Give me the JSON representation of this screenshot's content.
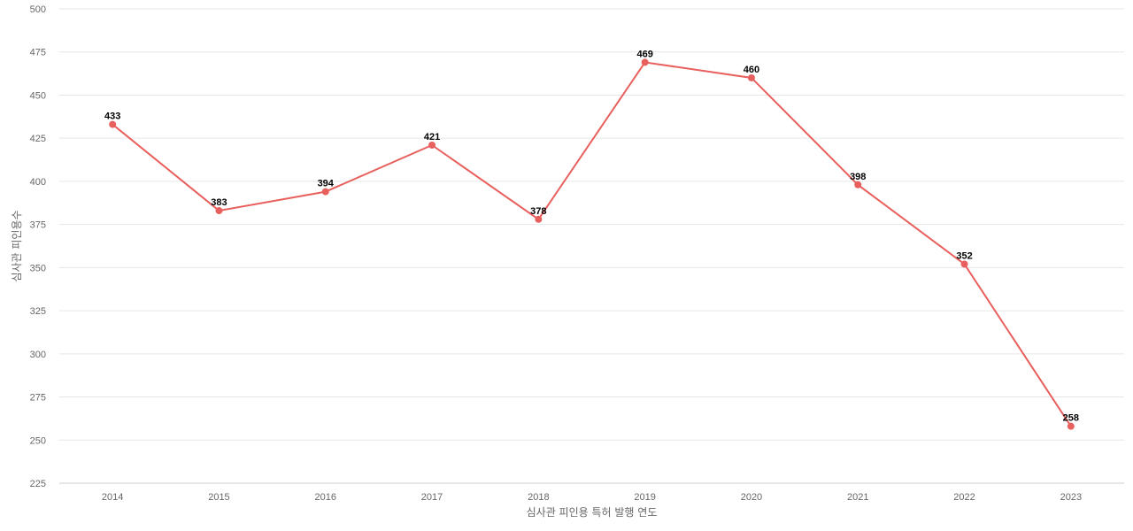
{
  "chart_data": {
    "type": "line",
    "title": "",
    "xlabel": "심사관 피인용 특허 발행 연도",
    "ylabel": "심사관 피인용수",
    "categories": [
      "2014",
      "2015",
      "2016",
      "2017",
      "2018",
      "2019",
      "2020",
      "2021",
      "2022",
      "2023"
    ],
    "series": [
      {
        "values": [
          433,
          383,
          394,
          421,
          378,
          469,
          460,
          398,
          352,
          258
        ]
      }
    ],
    "ylim": [
      225,
      500
    ],
    "yticks": [
      225,
      250,
      275,
      300,
      325,
      350,
      375,
      400,
      425,
      450,
      475,
      500
    ],
    "grid": true,
    "legend": "none",
    "line_color": "#e8605d"
  }
}
